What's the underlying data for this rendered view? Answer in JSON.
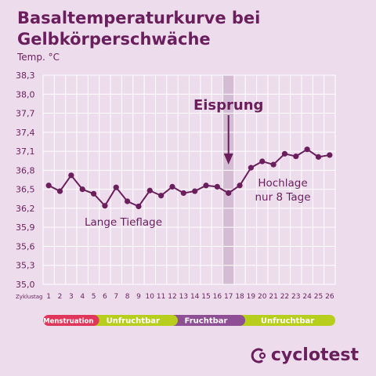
{
  "title": "Basaltemperaturkurve bei Gelbkörperschwäche",
  "y_unit": "Temp. °C",
  "x_prefix": "Zyklustag",
  "brand": "cyclotest",
  "colors": {
    "background": "#ecdcec",
    "grid": "#ffffff",
    "line": "#6a1f5c",
    "highlight": "#d4bcd4",
    "menstruation": "#e0365c",
    "unfruchtbar": "#b7cf1c",
    "fruchtbar": "#8e4f94"
  },
  "chart_data": {
    "type": "line",
    "title": "Basaltemperaturkurve bei Gelbkörperschwäche",
    "ylabel": "Temp. °C",
    "xlabel": "Zyklustag",
    "x": [
      1,
      2,
      3,
      4,
      5,
      6,
      7,
      8,
      9,
      10,
      11,
      12,
      13,
      14,
      15,
      16,
      17,
      18,
      19,
      20,
      21,
      22,
      23,
      24,
      25,
      26
    ],
    "y_ticks": [
      "38,3",
      "38,0",
      "37,7",
      "37,4",
      "37,1",
      "36,8",
      "36,5",
      "36,2",
      "35,9",
      "35,6",
      "35,3",
      "35,0"
    ],
    "ylim": [
      35.0,
      38.3
    ],
    "series": [
      {
        "values": [
          36.56,
          36.47,
          36.72,
          36.5,
          36.43,
          36.24,
          36.53,
          36.31,
          36.23,
          36.48,
          36.4,
          36.54,
          36.44,
          36.47,
          36.56,
          36.54,
          36.44,
          36.56,
          36.84,
          36.94,
          36.89,
          37.06,
          37.02,
          37.13,
          37.01,
          37.04
        ]
      }
    ],
    "highlight_day": 17,
    "annotations": [
      {
        "text": "Eisprung"
      },
      {
        "text": "Lange Tieflage"
      },
      {
        "text": "Hochlage"
      },
      {
        "text": "nur 8 Tage"
      }
    ],
    "phases": [
      {
        "label": "Menstruation",
        "from": 1,
        "to": 5,
        "color": "#e0365c"
      },
      {
        "label": "Unfruchtbar",
        "from": 5,
        "to": 12,
        "color": "#b7cf1c"
      },
      {
        "label": "Fruchtbar",
        "from": 12,
        "to": 18,
        "color": "#8e4f94"
      },
      {
        "label": "Unfruchtbar",
        "from": 18,
        "to": 26,
        "color": "#b7cf1c"
      }
    ],
    "grid": true
  }
}
